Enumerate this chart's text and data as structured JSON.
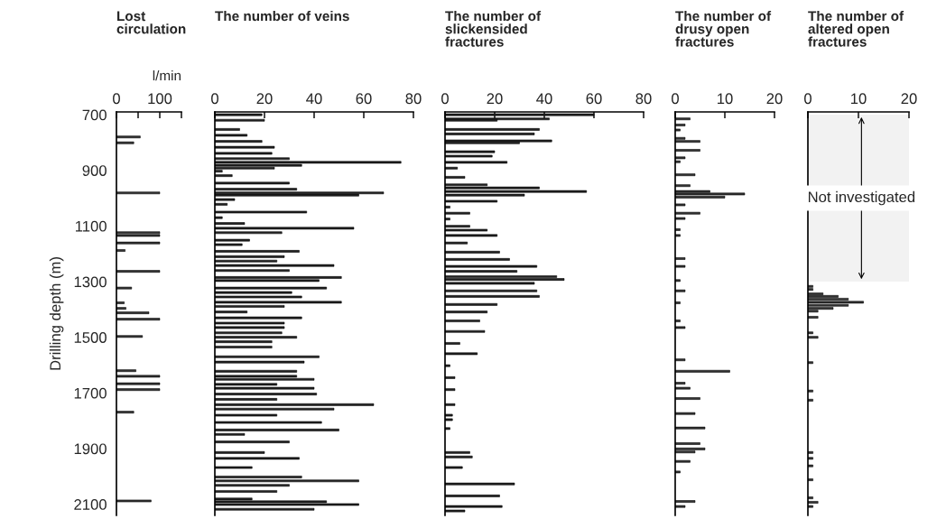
{
  "chart_data": [
    {
      "type": "bar",
      "orientation": "horizontal",
      "title": "Lost\ncirculation",
      "xlabel": "l/min",
      "ylabel": "Drilling depth (m)",
      "color": "#333333",
      "xlim": [
        0,
        150
      ],
      "xticks": [
        0,
        {
          "value": 50,
          "label": null
        },
        100,
        {
          "value": 150,
          "label": null
        }
      ],
      "ylim": [
        2140,
        690
      ],
      "yticks": [
        700,
        900,
        1100,
        1300,
        1500,
        1700,
        1900,
        2100
      ],
      "x": [
        780,
        801,
        981,
        1124,
        1134,
        1161,
        1188,
        1263,
        1323,
        1376,
        1396,
        1412,
        1435,
        1497,
        1620,
        1640,
        1667,
        1688,
        1769,
        2088
      ],
      "values": [
        55,
        40,
        100,
        100,
        100,
        100,
        20,
        100,
        35,
        18,
        22,
        75,
        100,
        60,
        45,
        100,
        100,
        100,
        40,
        80
      ]
    },
    {
      "type": "bar",
      "orientation": "horizontal",
      "title": "The number of veins",
      "color": "#222222",
      "xlim": [
        0,
        80
      ],
      "xticks": [
        0,
        20,
        40,
        60,
        80
      ],
      "ylim": [
        2140,
        690
      ],
      "yticks": [
        700,
        900,
        1100,
        1300,
        1500,
        1700,
        1900,
        2100
      ],
      "tick_labels": "x",
      "x": [
        700,
        720,
        753,
        774,
        796,
        817,
        839,
        858,
        871,
        882,
        892,
        903,
        919,
        946,
        968,
        981,
        989,
        1005,
        1022,
        1050,
        1070,
        1091,
        1108,
        1124,
        1151,
        1167,
        1191,
        1210,
        1226,
        1242,
        1260,
        1285,
        1296,
        1323,
        1339,
        1355,
        1374,
        1389,
        1409,
        1430,
        1449,
        1465,
        1484,
        1500,
        1516,
        1535,
        1570,
        1589,
        1622,
        1640,
        1651,
        1669,
        1683,
        1704,
        1723,
        1742,
        1758,
        1780,
        1806,
        1833,
        1849,
        1876,
        1914,
        1935,
        1968,
        2002,
        2016,
        2032,
        2054,
        2081,
        2091,
        2101,
        2118
      ],
      "values": [
        19,
        20,
        10,
        13,
        19,
        24,
        23,
        30,
        75,
        35,
        24,
        3,
        7,
        30,
        33,
        68,
        58,
        8,
        5,
        37,
        3,
        12,
        56,
        27,
        14,
        11,
        34,
        28,
        25,
        48,
        30,
        51,
        42,
        45,
        31,
        35,
        51,
        28,
        13,
        35,
        28,
        28,
        27,
        33,
        23,
        23,
        42,
        36,
        33,
        33,
        40,
        25,
        40,
        41,
        25,
        64,
        48,
        25,
        43,
        50,
        12,
        30,
        20,
        34,
        15,
        35,
        58,
        30,
        25,
        15,
        45,
        58,
        40
      ]
    },
    {
      "type": "bar",
      "orientation": "horizontal",
      "title": "The number of\nslickensided\nfractures",
      "color": "#222222",
      "xlim": [
        0,
        80
      ],
      "xticks": [
        0,
        20,
        40,
        60,
        80
      ],
      "ylim": [
        2140,
        690
      ],
      "yticks": [
        700,
        900,
        1100,
        1300,
        1500,
        1700,
        1900,
        2100
      ],
      "tick_labels": "x",
      "x": [
        700,
        715,
        720,
        753,
        769,
        794,
        801,
        833,
        849,
        871,
        892,
        925,
        952,
        963,
        976,
        989,
        1011,
        1032,
        1054,
        1075,
        1101,
        1115,
        1134,
        1161,
        1194,
        1220,
        1245,
        1263,
        1282,
        1292,
        1306,
        1333,
        1353,
        1382,
        1409,
        1441,
        1479,
        1522,
        1559,
        1602,
        1645,
        1688,
        1742,
        1780,
        1796,
        1828,
        1914,
        1930,
        1968,
        2027,
        2070,
        2108,
        2124
      ],
      "values": [
        60,
        42,
        21,
        38,
        36,
        43,
        30,
        20,
        19,
        25,
        5,
        8,
        17,
        38,
        57,
        32,
        21,
        2,
        10,
        2,
        10,
        17,
        21,
        9,
        22,
        26,
        37,
        29,
        45,
        48,
        36,
        37,
        38,
        21,
        17,
        14,
        16,
        6,
        13,
        2,
        4,
        4,
        4,
        3,
        3,
        2,
        10,
        11,
        7,
        28,
        22,
        23,
        8
      ]
    },
    {
      "type": "bar",
      "orientation": "horizontal",
      "title": "The number of\ndrusy open\nfractures",
      "color": "#333333",
      "xlim": [
        0,
        20
      ],
      "xticks": [
        0,
        10,
        20
      ],
      "ylim": [
        2140,
        690
      ],
      "yticks": [
        700,
        900,
        1100,
        1300,
        1500,
        1700,
        1900,
        2100
      ],
      "tick_labels": "x",
      "x": [
        715,
        737,
        755,
        785,
        796,
        828,
        855,
        869,
        916,
        955,
        976,
        985,
        996,
        1024,
        1054,
        1073,
        1113,
        1134,
        1217,
        1245,
        1296,
        1333,
        1376,
        1441,
        1465,
        1581,
        1622,
        1665,
        1683,
        1720,
        1774,
        1826,
        1882,
        1901,
        1912,
        1946,
        1984,
        2090,
        2108
      ],
      "values": [
        3,
        2,
        1,
        2,
        5,
        5,
        2,
        1,
        4,
        3,
        7,
        14,
        10,
        2,
        5,
        2,
        1,
        1,
        2,
        2,
        1,
        2,
        1,
        1,
        2,
        2,
        11,
        2,
        3,
        5,
        4,
        6,
        5,
        6,
        4,
        3,
        1,
        4,
        2
      ]
    },
    {
      "type": "bar",
      "orientation": "horizontal",
      "title": "The number of\naltered open\nfractures",
      "color": "#333333",
      "xlim": [
        0,
        20
      ],
      "xticks": [
        0,
        10,
        20
      ],
      "ylim": [
        2140,
        690
      ],
      "yticks": [
        700,
        900,
        1100,
        1300,
        1500,
        1700,
        1900,
        2100
      ],
      "tick_labels": "x",
      "bands": [
        {
          "axis": "y",
          "from": 700,
          "to": 1300,
          "label": "Not investigated",
          "color": "#f2f2f2"
        }
      ],
      "x": [
        1317,
        1328,
        1344,
        1353,
        1363,
        1374,
        1385,
        1396,
        1406,
        1428,
        1484,
        1500,
        1591,
        1693,
        1726,
        1914,
        1935,
        1962,
        2012,
        2077,
        2093,
        2108
      ],
      "values": [
        1,
        1,
        3,
        6,
        8,
        11,
        8,
        5,
        2,
        2,
        1,
        2,
        1,
        1,
        1,
        1,
        1,
        1,
        1,
        1,
        2,
        1
      ]
    }
  ]
}
